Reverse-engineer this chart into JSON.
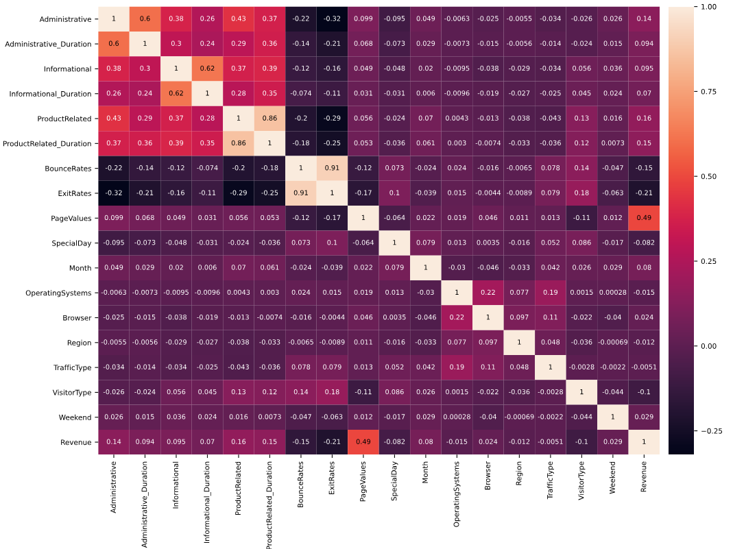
{
  "chart_data": {
    "type": "heatmap",
    "categories": [
      "Administrative",
      "Administrative_Duration",
      "Informational",
      "Informational_Duration",
      "ProductRelated",
      "ProductRelated_Duration",
      "BounceRates",
      "ExitRates",
      "PageValues",
      "SpecialDay",
      "Month",
      "OperatingSystems",
      "Browser",
      "Region",
      "TrafficType",
      "VisitorType",
      "Weekend",
      "Revenue"
    ],
    "y_categories": [
      "Administrative",
      "Administrative_Duration",
      "Informational",
      "Informational_Duration",
      "ProductRelated",
      "ProductRelated_Duration",
      "BounceRates",
      "ExitRates",
      "PageValues",
      "SpecialDay",
      "Month",
      "OperatingSystems",
      "Browser",
      "Region",
      "TrafficType",
      "VisitorType",
      "Weekend",
      "Revenue"
    ],
    "cells": [
      [
        1,
        0.6,
        0.38,
        0.26,
        0.43,
        0.37,
        -0.22,
        -0.32,
        0.099,
        -0.095,
        0.049,
        -0.0063,
        -0.025,
        -0.0055,
        -0.034,
        -0.026,
        0.026,
        0.14
      ],
      [
        0.6,
        1,
        0.3,
        0.24,
        0.29,
        0.36,
        -0.14,
        -0.21,
        0.068,
        -0.073,
        0.029,
        -0.0073,
        -0.015,
        -0.0056,
        -0.014,
        -0.024,
        0.015,
        0.094
      ],
      [
        0.38,
        0.3,
        1,
        0.62,
        0.37,
        0.39,
        -0.12,
        -0.16,
        0.049,
        -0.048,
        0.02,
        -0.0095,
        -0.038,
        -0.029,
        -0.034,
        0.056,
        0.036,
        0.095
      ],
      [
        0.26,
        0.24,
        0.62,
        1,
        0.28,
        0.35,
        -0.074,
        -0.11,
        0.031,
        -0.031,
        0.006,
        -0.0096,
        -0.019,
        -0.027,
        -0.025,
        0.045,
        0.024,
        0.07
      ],
      [
        0.43,
        0.29,
        0.37,
        0.28,
        1,
        0.86,
        -0.2,
        -0.29,
        0.056,
        -0.024,
        0.07,
        0.0043,
        -0.013,
        -0.038,
        -0.043,
        0.13,
        0.016,
        0.16
      ],
      [
        0.37,
        0.36,
        0.39,
        0.35,
        0.86,
        1,
        -0.18,
        -0.25,
        0.053,
        -0.036,
        0.061,
        0.003,
        -0.0074,
        -0.033,
        -0.036,
        0.12,
        0.0073,
        0.15
      ],
      [
        -0.22,
        -0.14,
        -0.12,
        -0.074,
        -0.2,
        -0.18,
        1,
        0.91,
        -0.12,
        0.073,
        -0.024,
        0.024,
        -0.016,
        -0.0065,
        0.078,
        0.14,
        -0.047,
        -0.15
      ],
      [
        -0.32,
        -0.21,
        -0.16,
        -0.11,
        -0.29,
        -0.25,
        0.91,
        1,
        -0.17,
        0.1,
        -0.039,
        0.015,
        -0.0044,
        -0.0089,
        0.079,
        0.18,
        -0.063,
        -0.21
      ],
      [
        0.099,
        0.068,
        0.049,
        0.031,
        0.056,
        0.053,
        -0.12,
        -0.17,
        1,
        -0.064,
        0.022,
        0.019,
        0.046,
        0.011,
        0.013,
        -0.11,
        0.012,
        0.49
      ],
      [
        -0.095,
        -0.073,
        -0.048,
        -0.031,
        -0.024,
        -0.036,
        0.073,
        0.1,
        -0.064,
        1,
        0.079,
        0.013,
        0.0035,
        -0.016,
        0.052,
        0.086,
        -0.017,
        -0.082
      ],
      [
        0.049,
        0.029,
        0.02,
        0.006,
        0.07,
        0.061,
        -0.024,
        -0.039,
        0.022,
        0.079,
        1,
        -0.03,
        -0.046,
        -0.033,
        0.042,
        0.026,
        0.029,
        0.08
      ],
      [
        -0.0063,
        -0.0073,
        -0.0095,
        -0.0096,
        0.0043,
        0.003,
        0.024,
        0.015,
        0.019,
        0.013,
        -0.03,
        1,
        0.22,
        0.077,
        0.19,
        0.0015,
        0.00028,
        -0.015
      ],
      [
        -0.025,
        -0.015,
        -0.038,
        -0.019,
        -0.013,
        -0.0074,
        -0.016,
        -0.0044,
        0.046,
        0.0035,
        -0.046,
        0.22,
        1,
        0.097,
        0.11,
        -0.022,
        -0.04,
        0.024
      ],
      [
        -0.0055,
        -0.0056,
        -0.029,
        -0.027,
        -0.038,
        -0.033,
        -0.0065,
        -0.0089,
        0.011,
        -0.016,
        -0.033,
        0.077,
        0.097,
        1,
        0.048,
        -0.036,
        -0.00069,
        -0.012
      ],
      [
        -0.034,
        -0.014,
        -0.034,
        -0.025,
        -0.043,
        -0.036,
        0.078,
        0.079,
        0.013,
        0.052,
        0.042,
        0.19,
        0.11,
        0.048,
        1,
        -0.0028,
        -0.0022,
        -0.0051
      ],
      [
        -0.026,
        -0.024,
        0.056,
        0.045,
        0.13,
        0.12,
        0.14,
        0.18,
        -0.11,
        0.086,
        0.026,
        0.0015,
        -0.022,
        -0.036,
        -0.0028,
        1,
        -0.044,
        -0.1
      ],
      [
        0.026,
        0.015,
        0.036,
        0.024,
        0.016,
        0.0073,
        -0.047,
        -0.063,
        0.012,
        -0.017,
        0.029,
        0.00028,
        -0.04,
        -0.00069,
        -0.0022,
        -0.044,
        1,
        0.029
      ],
      [
        0.14,
        0.094,
        0.095,
        0.07,
        0.16,
        0.15,
        -0.15,
        -0.21,
        0.49,
        -0.082,
        0.08,
        -0.015,
        0.024,
        -0.012,
        -0.0051,
        -0.1,
        0.029,
        1
      ]
    ],
    "data_labels": true,
    "clim": [
      -0.32,
      1
    ],
    "cticks": [
      {
        "value": -0.25,
        "label": "−0.25"
      },
      {
        "value": 0,
        "label": "0.00"
      },
      {
        "value": 0.25,
        "label": "0.25"
      },
      {
        "value": 0.5,
        "label": "0.50"
      },
      {
        "value": 0.75,
        "label": "0.75"
      },
      {
        "value": 1,
        "label": "1.00"
      }
    ]
  }
}
